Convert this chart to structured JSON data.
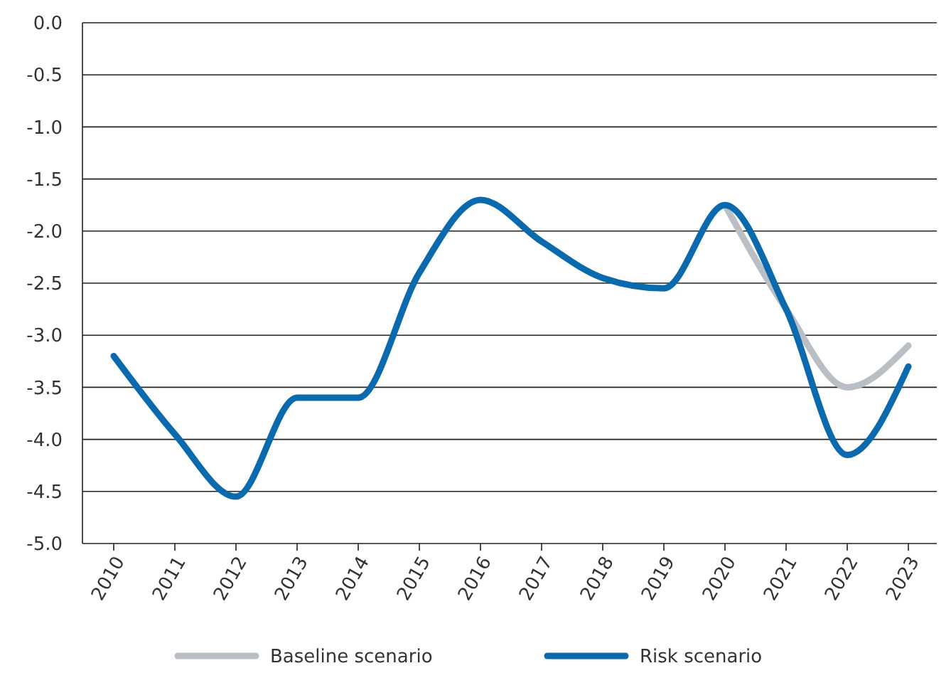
{
  "chart_data": {
    "type": "line",
    "categories": [
      "2010",
      "2011",
      "2012",
      "2013",
      "2014",
      "2015",
      "2016",
      "2017",
      "2018",
      "2019",
      "2020",
      "2021",
      "2022",
      "2023"
    ],
    "series": [
      {
        "name": "Baseline scenario",
        "color": "#b9bfc4",
        "values": [
          null,
          null,
          null,
          null,
          null,
          null,
          null,
          null,
          null,
          null,
          -1.75,
          -2.75,
          -3.5,
          -3.1
        ]
      },
      {
        "name": "Risk scenario",
        "color": "#0a6aad",
        "values": [
          -3.2,
          -3.95,
          -4.55,
          -3.6,
          -3.6,
          -2.4,
          -1.7,
          -2.1,
          -2.45,
          -2.55,
          -1.75,
          -2.75,
          -4.15,
          -3.3
        ]
      }
    ],
    "ylim": [
      -5,
      0
    ],
    "yticks": [
      {
        "value": 0,
        "label": "0.0"
      },
      {
        "value": -0.5,
        "label": "-0.5"
      },
      {
        "value": -1,
        "label": "-1.0"
      },
      {
        "value": -1.5,
        "label": "-1.5"
      },
      {
        "value": -2,
        "label": "-2.0"
      },
      {
        "value": -2.5,
        "label": "-2.5"
      },
      {
        "value": -3,
        "label": "-3.0"
      },
      {
        "value": -3.5,
        "label": "-3.5"
      },
      {
        "value": -4,
        "label": "-4.0"
      },
      {
        "value": -4.5,
        "label": "-4.5"
      },
      {
        "value": -5,
        "label": "-5.0"
      }
    ],
    "grid": "y",
    "legend": "bottom",
    "marker": "none",
    "line_style": "solid"
  }
}
